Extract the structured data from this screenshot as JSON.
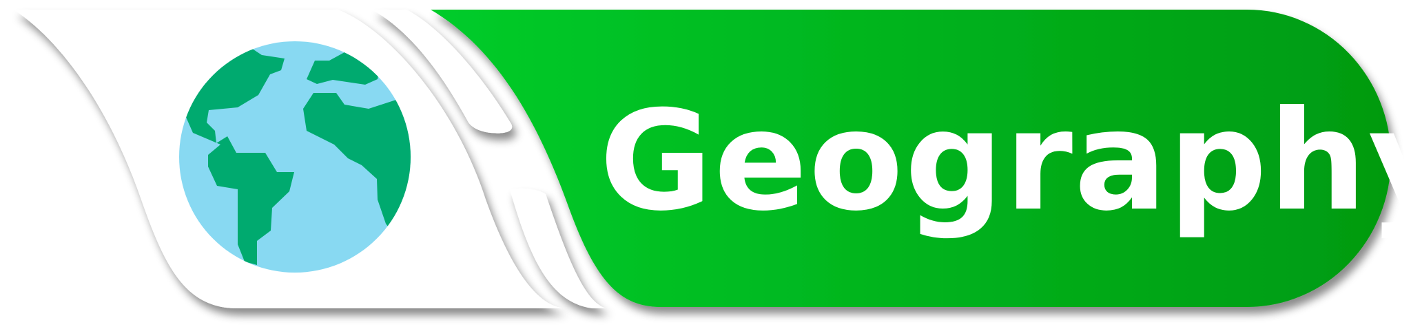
{
  "badge": {
    "label": "Geography",
    "icon": "globe-icon",
    "colors": {
      "green_dark": "#009a10",
      "green_light": "#04cc2a",
      "ocean": "#88d9f2",
      "land": "#00aa6f",
      "ribbon": "#ffffff"
    }
  }
}
